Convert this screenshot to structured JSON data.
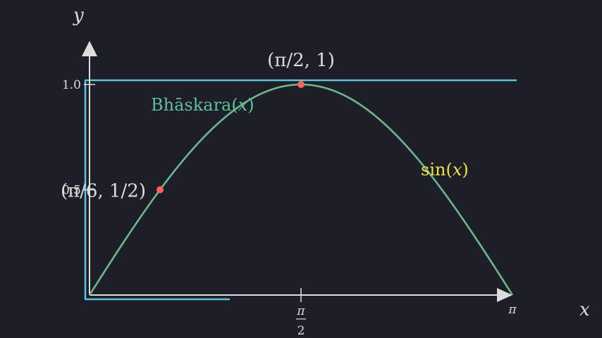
{
  "chart_data": {
    "type": "line",
    "title": "",
    "xlabel": "x",
    "ylabel": "y",
    "xlim": [
      0,
      3.14159
    ],
    "ylim": [
      0,
      1.0
    ],
    "x_ticks": [
      {
        "value": 1.5708,
        "label_num": "π",
        "label_den": "2"
      },
      {
        "value": 3.14159,
        "label": "π"
      }
    ],
    "y_ticks": [
      {
        "value": 0.5,
        "label": "0.5"
      },
      {
        "value": 1.0,
        "label": "1.0"
      }
    ],
    "series": [
      {
        "name": "Bhāskara(x)",
        "label_main": "Bhāskara(",
        "label_var": "x",
        "label_close": ")",
        "color": "#5fbf9e",
        "function": "bhaskara"
      },
      {
        "name": "sin(x)",
        "label_main": "sin(",
        "label_var": "x",
        "label_close": ")",
        "color": "#f0e442",
        "function": "sin"
      }
    ],
    "points": [
      {
        "x": 0.5236,
        "y": 0.5,
        "label": "(π/6, 1/2)",
        "color": "#fc6255"
      },
      {
        "x": 1.5708,
        "y": 1.0,
        "label": "(π/2, 1)",
        "color": "#fc6255"
      }
    ],
    "annotations": [
      {
        "type": "hline",
        "y": 1.0,
        "color": "#58c4dd"
      }
    ],
    "colors": {
      "background": "#1d1e27",
      "axis": "#dddddd",
      "highlight": "#58c4dd",
      "point": "#fc6255"
    }
  }
}
